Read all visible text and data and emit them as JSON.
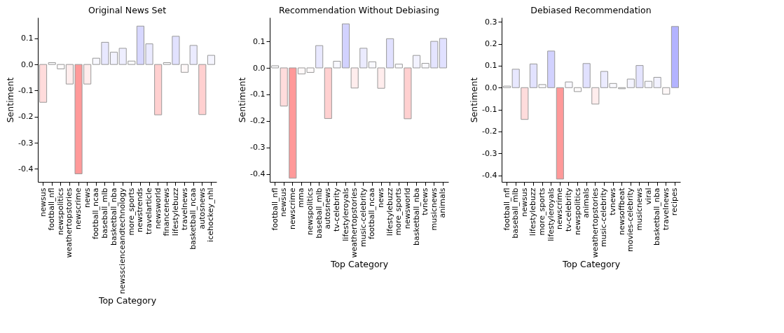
{
  "chart_data": [
    {
      "type": "bar",
      "title": "Original News Set",
      "xlabel": "Top Category",
      "ylabel": "Sentiment",
      "categories": [
        "newsus",
        "football_nfl",
        "newspolitics",
        "weathertopstories",
        "newscrime",
        "news",
        "football_ncaa",
        "baseball_mlb",
        "basketball_nba",
        "newsscienceandtechnology",
        "more_sports",
        "newstrends",
        "travelarticle",
        "newsworld",
        "financenews",
        "lifestylebuzz",
        "travelnews",
        "basketball_ncaa",
        "autosnews",
        "icehockey_nhl"
      ],
      "values": [
        -0.145,
        0.007,
        -0.017,
        -0.075,
        -0.419,
        -0.075,
        0.024,
        0.085,
        0.047,
        0.062,
        0.013,
        0.147,
        0.079,
        -0.193,
        0.007,
        0.108,
        -0.03,
        0.073,
        -0.192,
        0.035
      ],
      "colors": [
        "#ffdcdc",
        "#fdfdff",
        "#fffbfb",
        "#ffeded",
        "#ff9999",
        "#ffeded",
        "#f8f8ff",
        "#e8e8ff",
        "#f2f2ff",
        "#eeeeff",
        "#fbfbff",
        "#d7d7ff",
        "#eaeaff",
        "#ffd0d0",
        "#fdfdff",
        "#e2e2ff",
        "#fff8f8",
        "#ebebff",
        "#ffd0d0",
        "#f5f5ff"
      ],
      "ylim": [
        -0.45,
        0.18
      ],
      "yticks": [
        {
          "value": -0.4,
          "label": "-0.4"
        },
        {
          "value": -0.3,
          "label": "-0.3"
        },
        {
          "value": -0.2,
          "label": "-0.2"
        },
        {
          "value": -0.1,
          "label": "-0.1"
        },
        {
          "value": 0,
          "label": "0.0"
        },
        {
          "value": 0.1,
          "label": "0.1"
        }
      ],
      "grid": false,
      "legend": false
    },
    {
      "type": "bar",
      "title": "Recommendation Without Debiasing",
      "xlabel": "Top Category",
      "ylabel": "Sentiment",
      "categories": [
        "football_nfl",
        "newsus",
        "newscrime",
        "mma",
        "newspolitics",
        "baseball_mlb",
        "autosnews",
        "tv-celebrity",
        "lifestyleroyals",
        "weathertopstories",
        "music-celebrity",
        "football_ncaa",
        "news",
        "lifestylebuzz",
        "more_sports",
        "newsworld",
        "basketball_nba",
        "tvnews",
        "musicnews",
        "animals"
      ],
      "values": [
        0.008,
        -0.144,
        -0.416,
        -0.023,
        -0.017,
        0.084,
        -0.191,
        0.025,
        0.166,
        -0.076,
        0.074,
        0.023,
        -0.077,
        0.11,
        0.014,
        -0.192,
        0.047,
        0.017,
        0.1,
        0.111
      ],
      "colors": [
        "#fdfdff",
        "#ffdcdc",
        "#ff9999",
        "#fff9f9",
        "#fffbfb",
        "#e8e8ff",
        "#ffd0d0",
        "#f8f8ff",
        "#d2d2ff",
        "#ffeded",
        "#ebebff",
        "#f9f9ff",
        "#ffeded",
        "#e1e1ff",
        "#fbfbff",
        "#ffd0d0",
        "#f2f2ff",
        "#fafaff",
        "#e4e4ff",
        "#e1e1ff"
      ],
      "ylim": [
        -0.43,
        0.19
      ],
      "yticks": [
        {
          "value": -0.4,
          "label": "-0.4"
        },
        {
          "value": -0.3,
          "label": "-0.3"
        },
        {
          "value": -0.2,
          "label": "-0.2"
        },
        {
          "value": -0.1,
          "label": "-0.1"
        },
        {
          "value": 0,
          "label": "0.0"
        },
        {
          "value": 0.1,
          "label": "0.1"
        }
      ],
      "grid": false,
      "legend": false
    },
    {
      "type": "bar",
      "title": "Debiased Recommendation",
      "xlabel": "Top Category",
      "ylabel": "Sentiment",
      "categories": [
        "football_nfl",
        "baseball_mlb",
        "newsus",
        "lifestylebuzz",
        "more_sports",
        "lifestyleroyals",
        "newscrime",
        "tv-celebrity",
        "newspolitics",
        "animals",
        "weathertopstories",
        "music-celebrity",
        "tvnews",
        "newsoffbeat",
        "movies-celebrity",
        "musicnews",
        "viral",
        "basketball_nba",
        "travelnews",
        "recipes"
      ],
      "values": [
        0.007,
        0.084,
        -0.145,
        0.108,
        0.014,
        0.167,
        -0.417,
        0.026,
        -0.018,
        0.11,
        -0.075,
        0.074,
        0.019,
        -0.005,
        0.039,
        0.101,
        0.029,
        0.047,
        -0.03,
        0.279
      ],
      "colors": [
        "#fdfdff",
        "#e8e8ff",
        "#ffdcdc",
        "#e2e2ff",
        "#fbfbff",
        "#d2d2ff",
        "#ff9999",
        "#f8f8ff",
        "#fffbfb",
        "#e1e1ff",
        "#ffeded",
        "#ebebff",
        "#fafaff",
        "#fffefe",
        "#f4f4ff",
        "#e4e4ff",
        "#f7f7ff",
        "#f2f2ff",
        "#fff8f8",
        "#b3b3ff"
      ],
      "ylim": [
        -0.43,
        0.32
      ],
      "yticks": [
        {
          "value": -0.4,
          "label": "-0.4"
        },
        {
          "value": -0.3,
          "label": "-0.3"
        },
        {
          "value": -0.2,
          "label": "-0.2"
        },
        {
          "value": -0.1,
          "label": "-0.1"
        },
        {
          "value": 0,
          "label": "0.0"
        },
        {
          "value": 0.1,
          "label": "0.1"
        },
        {
          "value": 0.2,
          "label": "0.2"
        },
        {
          "value": 0.3,
          "label": "0.3"
        }
      ],
      "grid": false,
      "legend": false
    }
  ]
}
